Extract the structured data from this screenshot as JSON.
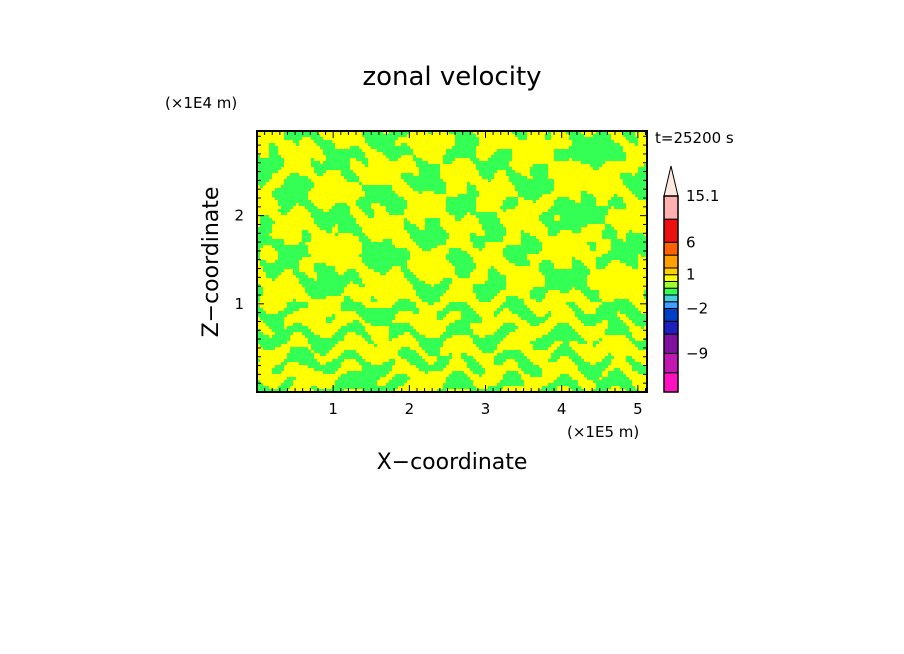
{
  "chart_data": {
    "type": "heatmap",
    "title": "zonal velocity",
    "xlabel": "X−coordinate",
    "ylabel": "Z−coordinate",
    "x_scale_note": "(×1E5 m)",
    "y_scale_note": "(×1E4 m)",
    "time_label": "t=25200 s",
    "xlim": [
      0,
      5.12
    ],
    "ylim": [
      0,
      2.96
    ],
    "x_ticks": [
      1,
      2,
      3,
      4,
      5
    ],
    "y_ticks": [
      1,
      2
    ],
    "x_tick_labels": [
      "1",
      "2",
      "3",
      "4",
      "5"
    ],
    "y_tick_labels": [
      "1",
      "2"
    ],
    "field_colors": {
      "low": "#33ff55",
      "high": "#ffff00"
    },
    "colorbar": {
      "labels": [
        "15.1",
        "6",
        "1",
        "−2",
        "−9"
      ],
      "label_values": [
        15.1,
        6,
        1,
        -2,
        -9
      ],
      "bands": [
        {
          "lo": -15,
          "hi": -12,
          "color": "#ff10c0"
        },
        {
          "lo": -12,
          "hi": -9,
          "color": "#c018b0"
        },
        {
          "lo": -9,
          "hi": -6,
          "color": "#8010a0"
        },
        {
          "lo": -6,
          "hi": -4,
          "color": "#2020c0"
        },
        {
          "lo": -4,
          "hi": -2,
          "color": "#0040c8"
        },
        {
          "lo": -2,
          "hi": -1,
          "color": "#40a0ff"
        },
        {
          "lo": -1,
          "hi": -0.5,
          "color": "#40d0e0"
        },
        {
          "lo": -0.5,
          "hi": 0,
          "color": "#30ff50"
        },
        {
          "lo": 0,
          "hi": 0.5,
          "color": "#a0ff30"
        },
        {
          "lo": 0.5,
          "hi": 1,
          "color": "#ffff00"
        },
        {
          "lo": 1,
          "hi": 2,
          "color": "#ffd000"
        },
        {
          "lo": 2,
          "hi": 4,
          "color": "#ffa000"
        },
        {
          "lo": 4,
          "hi": 6,
          "color": "#ff6000"
        },
        {
          "lo": 6,
          "hi": 10,
          "color": "#ee1010"
        },
        {
          "lo": 10,
          "hi": 15.1,
          "color": "#ffb0b0"
        }
      ],
      "extension_color": "#ffe8e0"
    }
  }
}
